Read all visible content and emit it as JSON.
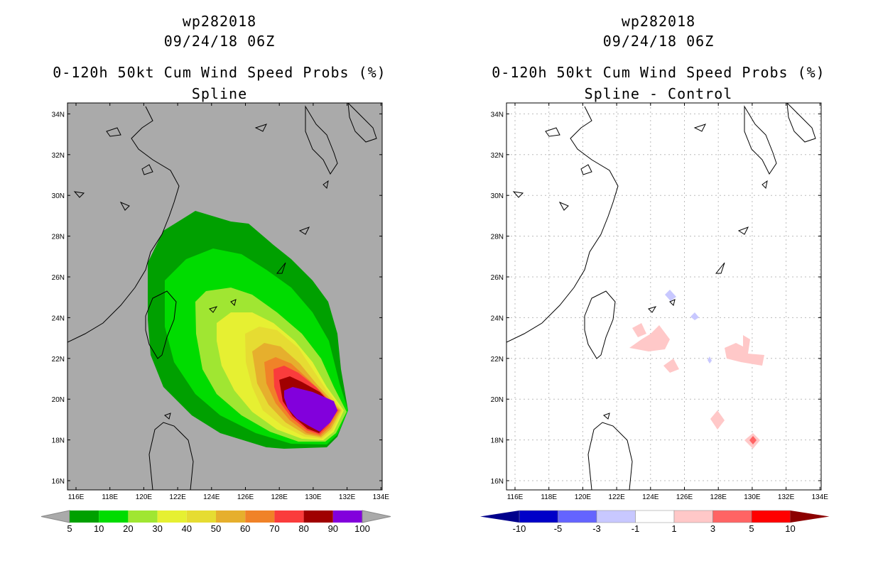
{
  "left": {
    "storm_id": "wp282018",
    "datetime": "09/24/18 06Z",
    "title": "0-120h 50kt Cum Wind Speed Probs (%)",
    "subtitle": "Spline",
    "background": "#aaaaaa",
    "colorbar": {
      "labels": [
        "5",
        "10",
        "20",
        "30",
        "40",
        "50",
        "60",
        "70",
        "80",
        "90",
        "100"
      ],
      "colors": [
        "#00a000",
        "#00dc00",
        "#a0e632",
        "#e6f032",
        "#e6dc32",
        "#e6af2d",
        "#f08228",
        "#fa3c3c",
        "#a00000",
        "#8200dc"
      ],
      "end_color": "#aaaaaa"
    }
  },
  "right": {
    "storm_id": "wp282018",
    "datetime": "09/24/18 06Z",
    "title": "0-120h 50kt Cum Wind Speed Probs (%)",
    "subtitle": "Spline - Control",
    "background": "#ffffff",
    "colorbar": {
      "labels": [
        "-10",
        "-5",
        "-3",
        "-1",
        "1",
        "3",
        "5",
        "10"
      ],
      "colors": [
        "#0000c8",
        "#6464ff",
        "#c8c8ff",
        "#ffffff",
        "#ffc8c8",
        "#ff6464",
        "#ff0000"
      ],
      "end_colors": [
        "#00008c",
        "#8c0000"
      ]
    }
  },
  "axes": {
    "lon_labels": [
      "116E",
      "118E",
      "120E",
      "122E",
      "124E",
      "126E",
      "128E",
      "130E",
      "132E",
      "134E"
    ],
    "lat_labels": [
      "16N",
      "18N",
      "20N",
      "22N",
      "24N",
      "26N",
      "28N",
      "30N",
      "32N",
      "34N"
    ]
  }
}
